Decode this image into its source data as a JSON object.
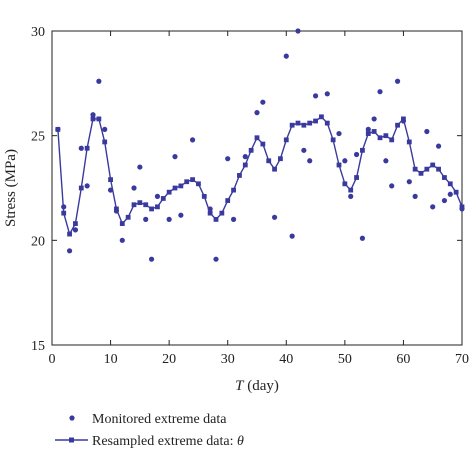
{
  "colors": {
    "series": "#3a3a9e",
    "axis": "#222222"
  },
  "legend": {
    "items": [
      {
        "label": "Monitored extreme data",
        "marker": "dot"
      },
      {
        "label": "Resampled extreme data: ",
        "symbol": "θ",
        "marker": "line-square"
      }
    ],
    "placement": "below plot, left"
  },
  "chart_data": {
    "type": "line",
    "xlabel_italic": "T",
    "xlabel_rest": " (day)",
    "ylabel": "Stress (MPa)",
    "xlim": [
      0,
      70
    ],
    "ylim": [
      15,
      30
    ],
    "xticks": [
      0,
      10,
      20,
      30,
      40,
      50,
      60,
      70
    ],
    "yticks": [
      15,
      20,
      25,
      30
    ],
    "grid": false,
    "series": [
      {
        "name": "Monitored extreme data",
        "style": "scatter-dot",
        "points": [
          [
            1,
            25.3
          ],
          [
            2,
            21.6
          ],
          [
            3,
            19.5
          ],
          [
            4,
            20.5
          ],
          [
            5,
            24.4
          ],
          [
            6,
            22.6
          ],
          [
            7,
            26.0
          ],
          [
            8,
            27.6
          ],
          [
            9,
            25.3
          ],
          [
            10,
            22.4
          ],
          [
            11,
            21.4
          ],
          [
            12,
            20.0
          ],
          [
            14,
            22.5
          ],
          [
            15,
            23.5
          ],
          [
            16,
            21.0
          ],
          [
            17,
            19.1
          ],
          [
            18,
            22.1
          ],
          [
            20,
            21.0
          ],
          [
            21,
            24.0
          ],
          [
            22,
            21.2
          ],
          [
            24,
            24.8
          ],
          [
            27,
            21.5
          ],
          [
            28,
            19.1
          ],
          [
            30,
            23.9
          ],
          [
            31,
            21.0
          ],
          [
            33,
            24.0
          ],
          [
            35,
            26.1
          ],
          [
            36,
            26.6
          ],
          [
            38,
            21.1
          ],
          [
            40,
            28.8
          ],
          [
            41,
            20.2
          ],
          [
            42,
            30.0
          ],
          [
            43,
            24.3
          ],
          [
            44,
            23.8
          ],
          [
            45,
            26.9
          ],
          [
            47,
            27.0
          ],
          [
            49,
            25.1
          ],
          [
            50,
            23.8
          ],
          [
            51,
            22.1
          ],
          [
            52,
            24.1
          ],
          [
            53,
            20.1
          ],
          [
            54,
            25.3
          ],
          [
            55,
            25.8
          ],
          [
            56,
            27.1
          ],
          [
            57,
            23.8
          ],
          [
            58,
            22.6
          ],
          [
            59,
            27.6
          ],
          [
            60,
            25.7
          ],
          [
            61,
            22.8
          ],
          [
            62,
            22.1
          ],
          [
            64,
            25.2
          ],
          [
            65,
            21.6
          ],
          [
            66,
            24.5
          ],
          [
            67,
            21.9
          ],
          [
            68,
            22.2
          ],
          [
            70,
            21.5
          ]
        ]
      },
      {
        "name": "Resampled extreme data",
        "style": "line-square",
        "points": [
          [
            1,
            25.3
          ],
          [
            2,
            21.3
          ],
          [
            3,
            20.3
          ],
          [
            4,
            20.8
          ],
          [
            5,
            22.5
          ],
          [
            6,
            24.4
          ],
          [
            7,
            25.8
          ],
          [
            8,
            25.8
          ],
          [
            9,
            24.7
          ],
          [
            10,
            22.9
          ],
          [
            11,
            21.5
          ],
          [
            12,
            20.8
          ],
          [
            13,
            21.1
          ],
          [
            14,
            21.7
          ],
          [
            15,
            21.8
          ],
          [
            16,
            21.7
          ],
          [
            17,
            21.5
          ],
          [
            18,
            21.6
          ],
          [
            19,
            22.0
          ],
          [
            20,
            22.3
          ],
          [
            21,
            22.5
          ],
          [
            22,
            22.6
          ],
          [
            23,
            22.8
          ],
          [
            24,
            22.9
          ],
          [
            25,
            22.7
          ],
          [
            26,
            22.1
          ],
          [
            27,
            21.3
          ],
          [
            28,
            21.0
          ],
          [
            29,
            21.3
          ],
          [
            30,
            21.9
          ],
          [
            31,
            22.4
          ],
          [
            32,
            23.1
          ],
          [
            33,
            23.6
          ],
          [
            34,
            24.3
          ],
          [
            35,
            24.9
          ],
          [
            36,
            24.6
          ],
          [
            37,
            23.8
          ],
          [
            38,
            23.4
          ],
          [
            39,
            23.9
          ],
          [
            40,
            24.8
          ],
          [
            41,
            25.5
          ],
          [
            42,
            25.6
          ],
          [
            43,
            25.5
          ],
          [
            44,
            25.6
          ],
          [
            45,
            25.7
          ],
          [
            46,
            25.9
          ],
          [
            47,
            25.6
          ],
          [
            48,
            24.8
          ],
          [
            49,
            23.6
          ],
          [
            50,
            22.7
          ],
          [
            51,
            22.4
          ],
          [
            52,
            23.0
          ],
          [
            53,
            24.3
          ],
          [
            54,
            25.1
          ],
          [
            55,
            25.2
          ],
          [
            56,
            24.9
          ],
          [
            57,
            25.0
          ],
          [
            58,
            24.8
          ],
          [
            59,
            25.5
          ],
          [
            60,
            25.8
          ],
          [
            61,
            24.7
          ],
          [
            62,
            23.4
          ],
          [
            63,
            23.2
          ],
          [
            64,
            23.4
          ],
          [
            65,
            23.6
          ],
          [
            66,
            23.4
          ],
          [
            67,
            23.0
          ],
          [
            68,
            22.7
          ],
          [
            69,
            22.3
          ],
          [
            70,
            21.6
          ]
        ]
      }
    ]
  }
}
